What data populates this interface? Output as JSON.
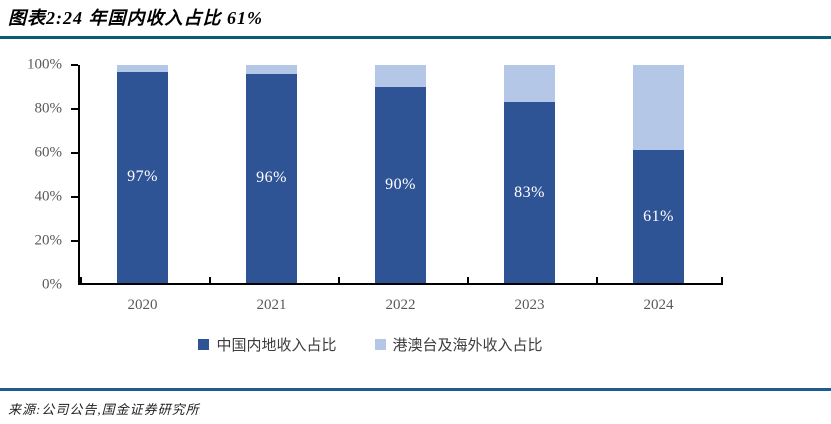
{
  "header": {
    "title": "图表2:24 年国内收入占比 61%"
  },
  "footer": {
    "source": "来源:公司公告,国金证券研究所"
  },
  "colors": {
    "bar_primary": "#2F5496",
    "bar_secondary": "#B4C7E7",
    "rule_top": "#0B5B76",
    "rule_bottom": "#1F5B8E",
    "axis_line": "#000000",
    "axis_label": "#595959",
    "bar_label": "#FFFFFF",
    "legend_text": "#3D3D3D"
  },
  "chart_data": {
    "type": "bar",
    "stacked": true,
    "title": "图表2:24 年国内收入占比 61%",
    "categories": [
      "2020",
      "2021",
      "2022",
      "2023",
      "2024"
    ],
    "series": [
      {
        "name": "中国内地收入占比",
        "values": [
          97,
          96,
          90,
          83,
          61
        ],
        "labels": [
          "97%",
          "96%",
          "90%",
          "83%",
          "61%"
        ],
        "color": "#2F5496"
      },
      {
        "name": "港澳台及海外收入占比",
        "values": [
          3,
          4,
          10,
          17,
          39
        ],
        "labels": [
          "",
          "",
          "",
          "",
          ""
        ],
        "color": "#B4C7E7"
      }
    ],
    "y_ticks": [
      0,
      20,
      40,
      60,
      80,
      100
    ],
    "y_tick_labels": [
      "0%",
      "20%",
      "40%",
      "60%",
      "80%",
      "100%"
    ],
    "ylim": [
      0,
      100
    ],
    "grid": false,
    "legend_position": "bottom"
  }
}
